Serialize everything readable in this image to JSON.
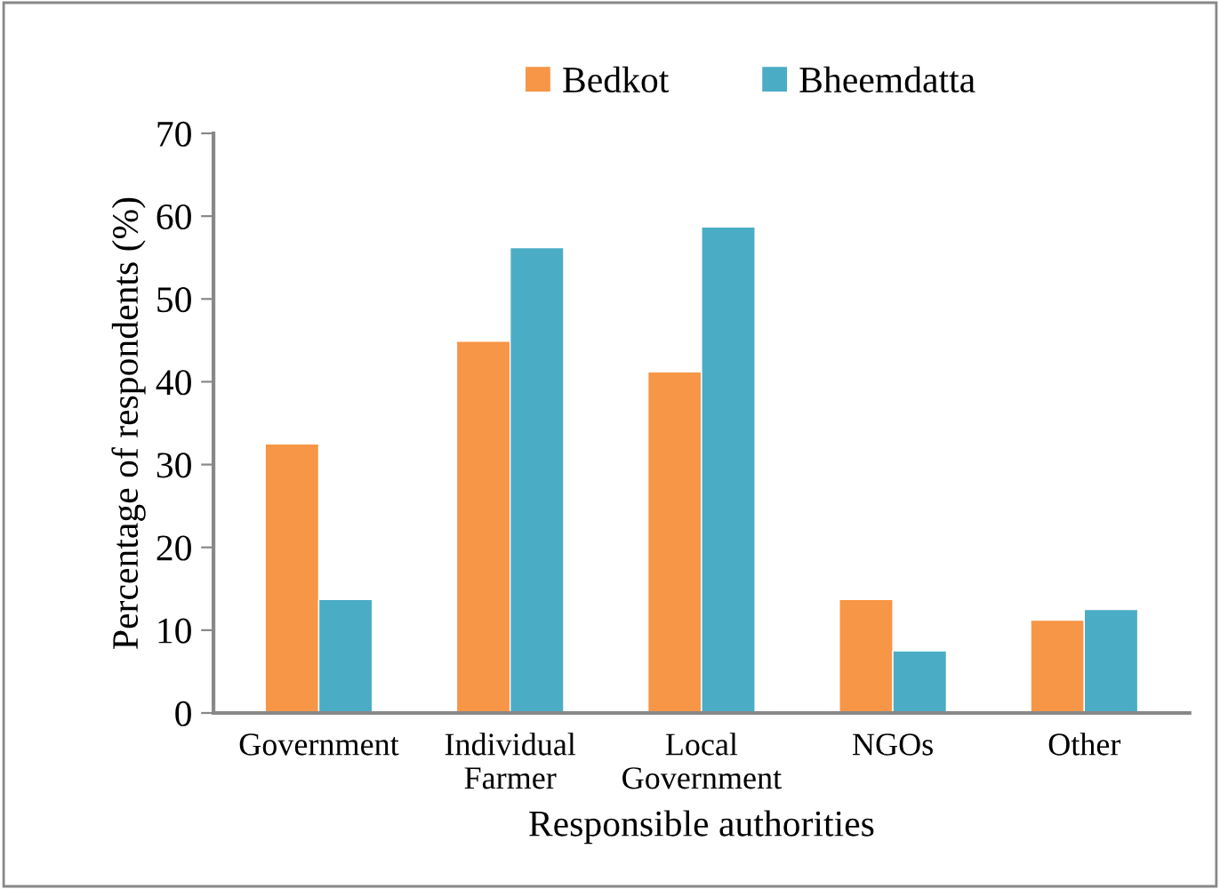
{
  "chart_data": {
    "type": "bar",
    "xlabel": "Responsible authorities",
    "ylabel": "Percentage of respondents (%)",
    "categories": [
      "Government",
      "Individual\nFarmer",
      "Local\nGovernment",
      "NGOs",
      "Other"
    ],
    "series": [
      {
        "name": "Bedkot",
        "color": "#f79646",
        "values": [
          32.5,
          44.9,
          41.2,
          13.7,
          11.2
        ]
      },
      {
        "name": "Bheemdatta",
        "color": "#4bacc6",
        "values": [
          13.7,
          56.2,
          58.7,
          7.5,
          12.5
        ]
      }
    ],
    "ylim": [
      0,
      70
    ],
    "yticks": [
      0,
      10,
      20,
      30,
      40,
      50,
      60,
      70
    ],
    "grid": false,
    "legend": "top"
  }
}
